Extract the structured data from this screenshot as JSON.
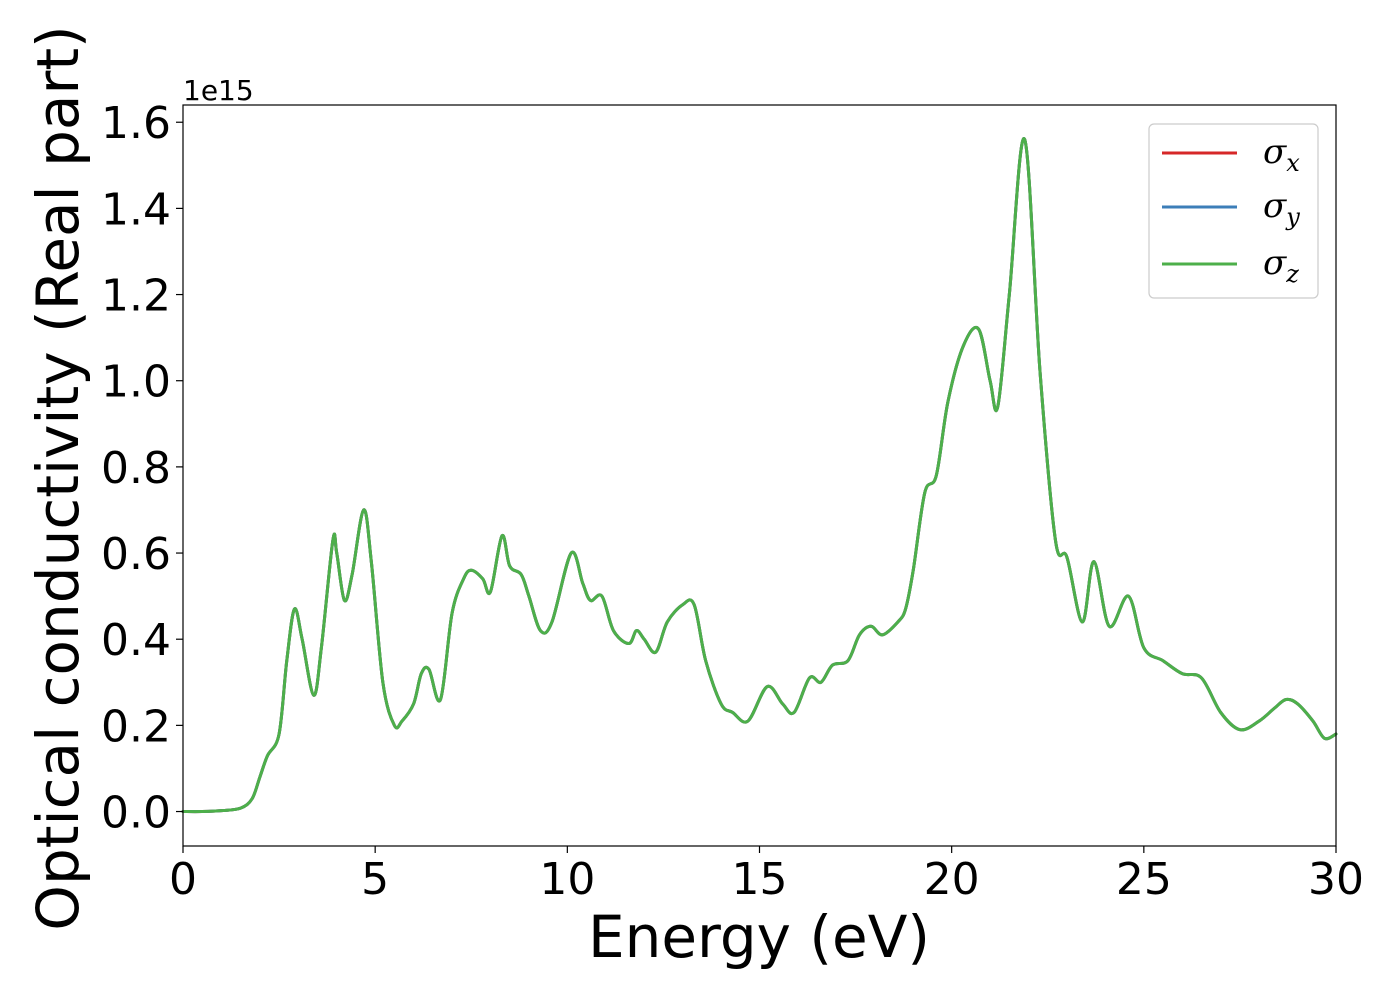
{
  "chart_data": {
    "type": "line",
    "title": "",
    "xlabel": "Energy (eV)",
    "ylabel": "Optical conductivity (Real part)",
    "y_offset_label": "1e15",
    "xlim": [
      0,
      30
    ],
    "ylim": [
      -0.08,
      1.64
    ],
    "xticks": [
      0,
      5,
      10,
      15,
      20,
      25,
      30
    ],
    "xtick_labels": [
      "0",
      "5",
      "10",
      "15",
      "20",
      "25",
      "30"
    ],
    "yticks": [
      0.0,
      0.2,
      0.4,
      0.6,
      0.8,
      1.0,
      1.2,
      1.4,
      1.6
    ],
    "ytick_labels": [
      "0.0",
      "0.2",
      "0.4",
      "0.6",
      "0.8",
      "1.0",
      "1.2",
      "1.4",
      "1.6"
    ],
    "grid": false,
    "legend_position": "top-right",
    "series": [
      {
        "name": "σx",
        "symbol": "σ",
        "subscript": "x",
        "color": "#d62728",
        "x": [
          0,
          0.5,
          1.0,
          1.5,
          1.8,
          2.0,
          2.2,
          2.5,
          2.7,
          2.9,
          3.1,
          3.4,
          3.6,
          3.9,
          4.0,
          4.2,
          4.4,
          4.7,
          4.9,
          5.2,
          5.5,
          5.7,
          6.0,
          6.2,
          6.4,
          6.7,
          7.0,
          7.3,
          7.5,
          7.8,
          8.0,
          8.3,
          8.5,
          8.8,
          9.0,
          9.3,
          9.6,
          10.1,
          10.4,
          10.6,
          10.9,
          11.2,
          11.6,
          11.8,
          12.0,
          12.3,
          12.6,
          13.0,
          13.3,
          13.6,
          14.0,
          14.3,
          14.7,
          15.2,
          15.6,
          15.9,
          16.3,
          16.6,
          16.9,
          17.3,
          17.6,
          17.9,
          18.2,
          18.6,
          18.8,
          19.0,
          19.3,
          19.6,
          19.9,
          20.3,
          20.7,
          21.0,
          21.2,
          21.5,
          21.9,
          22.3,
          22.7,
          23.0,
          23.4,
          23.7,
          24.1,
          24.6,
          25.0,
          25.5,
          26.0,
          26.5,
          27.0,
          27.5,
          28.0,
          28.4,
          28.7,
          29.0,
          29.4,
          29.7,
          30.0
        ],
        "y": [
          0.0,
          0.0,
          0.002,
          0.008,
          0.03,
          0.08,
          0.13,
          0.18,
          0.35,
          0.47,
          0.4,
          0.27,
          0.38,
          0.63,
          0.6,
          0.49,
          0.55,
          0.7,
          0.58,
          0.3,
          0.2,
          0.21,
          0.25,
          0.32,
          0.33,
          0.26,
          0.46,
          0.54,
          0.56,
          0.54,
          0.51,
          0.64,
          0.57,
          0.55,
          0.5,
          0.42,
          0.44,
          0.6,
          0.53,
          0.49,
          0.5,
          0.42,
          0.39,
          0.42,
          0.4,
          0.37,
          0.44,
          0.48,
          0.48,
          0.35,
          0.25,
          0.23,
          0.21,
          0.29,
          0.25,
          0.23,
          0.31,
          0.3,
          0.34,
          0.35,
          0.41,
          0.43,
          0.41,
          0.44,
          0.47,
          0.56,
          0.74,
          0.78,
          0.95,
          1.08,
          1.12,
          1.0,
          0.94,
          1.2,
          1.56,
          1.02,
          0.63,
          0.59,
          0.44,
          0.58,
          0.43,
          0.5,
          0.38,
          0.35,
          0.32,
          0.31,
          0.23,
          0.19,
          0.21,
          0.24,
          0.26,
          0.25,
          0.21,
          0.17,
          0.18
        ]
      },
      {
        "name": "σy",
        "symbol": "σ",
        "subscript": "y",
        "color": "#3c7eb8",
        "x": [
          0,
          0.5,
          1.0,
          1.5,
          1.8,
          2.0,
          2.2,
          2.5,
          2.7,
          2.9,
          3.1,
          3.4,
          3.6,
          3.9,
          4.0,
          4.2,
          4.4,
          4.7,
          4.9,
          5.2,
          5.5,
          5.7,
          6.0,
          6.2,
          6.4,
          6.7,
          7.0,
          7.3,
          7.5,
          7.8,
          8.0,
          8.3,
          8.5,
          8.8,
          9.0,
          9.3,
          9.6,
          10.1,
          10.4,
          10.6,
          10.9,
          11.2,
          11.6,
          11.8,
          12.0,
          12.3,
          12.6,
          13.0,
          13.3,
          13.6,
          14.0,
          14.3,
          14.7,
          15.2,
          15.6,
          15.9,
          16.3,
          16.6,
          16.9,
          17.3,
          17.6,
          17.9,
          18.2,
          18.6,
          18.8,
          19.0,
          19.3,
          19.6,
          19.9,
          20.3,
          20.7,
          21.0,
          21.2,
          21.5,
          21.9,
          22.3,
          22.7,
          23.0,
          23.4,
          23.7,
          24.1,
          24.6,
          25.0,
          25.5,
          26.0,
          26.5,
          27.0,
          27.5,
          28.0,
          28.4,
          28.7,
          29.0,
          29.4,
          29.7,
          30.0
        ],
        "y": [
          0.0,
          0.0,
          0.002,
          0.008,
          0.03,
          0.08,
          0.13,
          0.18,
          0.35,
          0.47,
          0.4,
          0.27,
          0.38,
          0.63,
          0.6,
          0.49,
          0.55,
          0.7,
          0.58,
          0.3,
          0.2,
          0.21,
          0.25,
          0.32,
          0.33,
          0.26,
          0.46,
          0.54,
          0.56,
          0.54,
          0.51,
          0.64,
          0.57,
          0.55,
          0.5,
          0.42,
          0.44,
          0.6,
          0.53,
          0.49,
          0.5,
          0.42,
          0.39,
          0.42,
          0.4,
          0.37,
          0.44,
          0.48,
          0.48,
          0.35,
          0.25,
          0.23,
          0.21,
          0.29,
          0.25,
          0.23,
          0.31,
          0.3,
          0.34,
          0.35,
          0.41,
          0.43,
          0.41,
          0.44,
          0.47,
          0.56,
          0.74,
          0.78,
          0.95,
          1.08,
          1.12,
          1.0,
          0.94,
          1.2,
          1.56,
          1.02,
          0.63,
          0.59,
          0.44,
          0.58,
          0.43,
          0.5,
          0.38,
          0.35,
          0.32,
          0.31,
          0.23,
          0.19,
          0.21,
          0.24,
          0.26,
          0.25,
          0.21,
          0.17,
          0.18
        ]
      },
      {
        "name": "σz",
        "symbol": "σ",
        "subscript": "z",
        "color": "#4daf4a",
        "x": [
          0,
          0.5,
          1.0,
          1.5,
          1.8,
          2.0,
          2.2,
          2.5,
          2.7,
          2.9,
          3.1,
          3.4,
          3.6,
          3.9,
          4.0,
          4.2,
          4.4,
          4.7,
          4.9,
          5.2,
          5.5,
          5.7,
          6.0,
          6.2,
          6.4,
          6.7,
          7.0,
          7.3,
          7.5,
          7.8,
          8.0,
          8.3,
          8.5,
          8.8,
          9.0,
          9.3,
          9.6,
          10.1,
          10.4,
          10.6,
          10.9,
          11.2,
          11.6,
          11.8,
          12.0,
          12.3,
          12.6,
          13.0,
          13.3,
          13.6,
          14.0,
          14.3,
          14.7,
          15.2,
          15.6,
          15.9,
          16.3,
          16.6,
          16.9,
          17.3,
          17.6,
          17.9,
          18.2,
          18.6,
          18.8,
          19.0,
          19.3,
          19.6,
          19.9,
          20.3,
          20.7,
          21.0,
          21.2,
          21.5,
          21.9,
          22.3,
          22.7,
          23.0,
          23.4,
          23.7,
          24.1,
          24.6,
          25.0,
          25.5,
          26.0,
          26.5,
          27.0,
          27.5,
          28.0,
          28.4,
          28.7,
          29.0,
          29.4,
          29.7,
          30.0
        ],
        "y": [
          0.0,
          0.0,
          0.002,
          0.008,
          0.03,
          0.08,
          0.13,
          0.18,
          0.35,
          0.47,
          0.4,
          0.27,
          0.38,
          0.63,
          0.6,
          0.49,
          0.55,
          0.7,
          0.58,
          0.3,
          0.2,
          0.21,
          0.25,
          0.32,
          0.33,
          0.26,
          0.46,
          0.54,
          0.56,
          0.54,
          0.51,
          0.64,
          0.57,
          0.55,
          0.5,
          0.42,
          0.44,
          0.6,
          0.53,
          0.49,
          0.5,
          0.42,
          0.39,
          0.42,
          0.4,
          0.37,
          0.44,
          0.48,
          0.48,
          0.35,
          0.25,
          0.23,
          0.21,
          0.29,
          0.25,
          0.23,
          0.31,
          0.3,
          0.34,
          0.35,
          0.41,
          0.43,
          0.41,
          0.44,
          0.47,
          0.56,
          0.74,
          0.78,
          0.95,
          1.08,
          1.12,
          1.0,
          0.94,
          1.2,
          1.56,
          1.02,
          0.63,
          0.59,
          0.44,
          0.58,
          0.43,
          0.5,
          0.38,
          0.35,
          0.32,
          0.31,
          0.23,
          0.19,
          0.21,
          0.24,
          0.26,
          0.25,
          0.21,
          0.17,
          0.18
        ]
      }
    ]
  }
}
